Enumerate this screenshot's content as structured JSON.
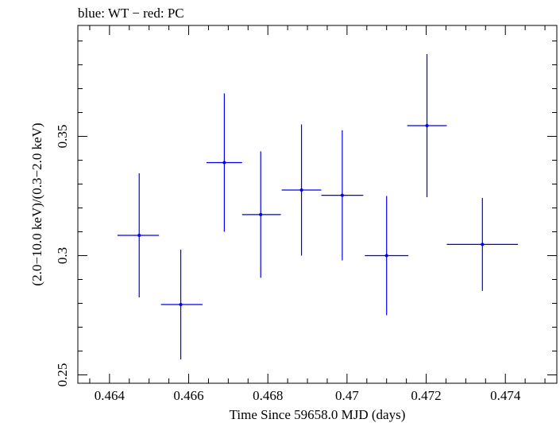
{
  "chart_data": {
    "type": "scatter",
    "title": "blue: WT − red: PC",
    "xlabel": "Time Since 59658.0 MJD (days)",
    "ylabel": "(2.0−10.0 keV)/(0.3−2.0 keV)",
    "xlim": [
      0.4632,
      0.4753
    ],
    "ylim": [
      0.2465,
      0.3965
    ],
    "x_ticks": [
      0.464,
      0.466,
      0.468,
      0.47,
      0.472,
      0.474
    ],
    "x_tick_labels": [
      "0.464",
      "0.466",
      "0.468",
      "0.47",
      "0.472",
      "0.474"
    ],
    "y_ticks": [
      0.25,
      0.3,
      0.35
    ],
    "y_tick_labels": [
      "0.25",
      "0.3",
      "0.35"
    ],
    "grid": false,
    "series": [
      {
        "color": "#0000ee",
        "points": [
          {
            "x": 0.46475,
            "y": 0.3085,
            "xerr_low": 0.00055,
            "xerr_high": 0.0005,
            "yerr_low": 0.026,
            "yerr_high": 0.026
          },
          {
            "x": 0.4658,
            "y": 0.2795,
            "xerr_low": 0.0005,
            "xerr_high": 0.00055,
            "yerr_low": 0.023,
            "yerr_high": 0.023
          },
          {
            "x": 0.4669,
            "y": 0.339,
            "xerr_low": 0.00045,
            "xerr_high": 0.00045,
            "yerr_low": 0.029,
            "yerr_high": 0.029
          },
          {
            "x": 0.46782,
            "y": 0.3172,
            "xerr_low": 0.00047,
            "xerr_high": 0.00051,
            "yerr_low": 0.0265,
            "yerr_high": 0.0265
          },
          {
            "x": 0.46885,
            "y": 0.3275,
            "xerr_low": 0.0005,
            "xerr_high": 0.0005,
            "yerr_low": 0.0275,
            "yerr_high": 0.0275
          },
          {
            "x": 0.46988,
            "y": 0.3253,
            "xerr_low": 0.00053,
            "xerr_high": 0.00053,
            "yerr_low": 0.0273,
            "yerr_high": 0.0273
          },
          {
            "x": 0.471,
            "y": 0.3,
            "xerr_low": 0.00055,
            "xerr_high": 0.00055,
            "yerr_low": 0.025,
            "yerr_high": 0.025
          },
          {
            "x": 0.47202,
            "y": 0.3545,
            "xerr_low": 0.0005,
            "xerr_high": 0.0005,
            "yerr_low": 0.03,
            "yerr_high": 0.03
          },
          {
            "x": 0.47342,
            "y": 0.3047,
            "xerr_low": 0.0009,
            "xerr_high": 0.0009,
            "yerr_low": 0.0195,
            "yerr_high": 0.0195
          }
        ]
      }
    ]
  }
}
